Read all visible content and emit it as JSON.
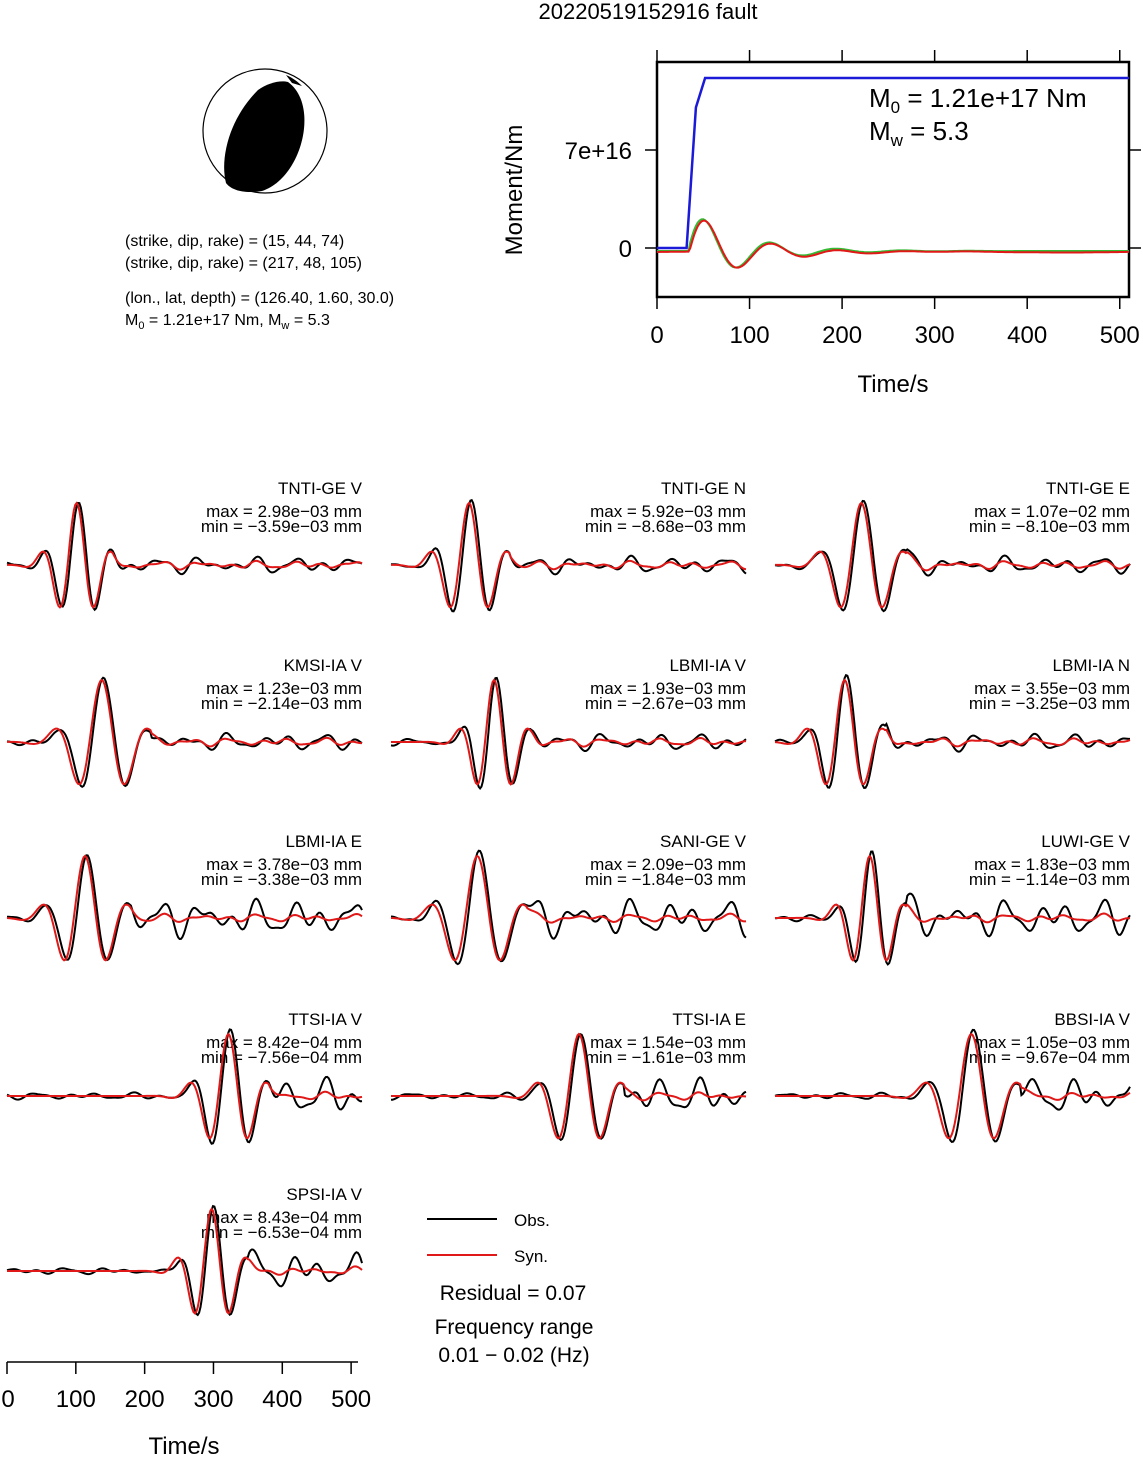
{
  "title": "20220519152916 fault",
  "colors": {
    "obs": "#000000",
    "syn": "#e01818",
    "moment_cum": "#1a1ad8",
    "rate_red": "#e01818",
    "rate_green": "#33bb33",
    "beachball": "#000000"
  },
  "info": {
    "line1": "(strike, dip, rake) = (15, 44, 74)",
    "line2": "(strike, dip, rake) = (217, 48, 105)",
    "line3": "(lon., lat, depth) = (126.40, 1.60, 30.0)",
    "line4_a": "M",
    "line4_b": "0",
    "line4_c": " = 1.21e+17 Nm, M",
    "line4_d": "w",
    "line4_e": " = 5.3"
  },
  "moment_panel": {
    "ylabel": "Moment/Nm",
    "xlabel": "Time/s",
    "annot_m0_a": "M",
    "annot_m0_b": "0",
    "annot_m0_c": " = 1.21e+17 Nm",
    "annot_mw_a": "M",
    "annot_mw_b": "w",
    "annot_mw_c": " = 5.3",
    "yticks": [
      "0",
      "7e+16"
    ],
    "xticks": [
      "0",
      "100",
      "200",
      "300",
      "400",
      "500"
    ]
  },
  "stations": [
    {
      "name": "TNTI-GE V",
      "max": "max = 2.98e−03 mm",
      "min": "min = −3.59e−03 mm"
    },
    {
      "name": "TNTI-GE N",
      "max": "max = 5.92e−03 mm",
      "min": "min = −8.68e−03 mm"
    },
    {
      "name": "TNTI-GE E",
      "max": "max = 1.07e−02 mm",
      "min": "min = −8.10e−03 mm"
    },
    {
      "name": "KMSI-IA V",
      "max": "max = 1.23e−03 mm",
      "min": "min = −2.14e−03 mm"
    },
    {
      "name": "LBMI-IA V",
      "max": "max = 1.93e−03 mm",
      "min": "min = −2.67e−03 mm"
    },
    {
      "name": "LBMI-IA N",
      "max": "max = 3.55e−03 mm",
      "min": "min = −3.25e−03 mm"
    },
    {
      "name": "LBMI-IA E",
      "max": "max = 3.78e−03 mm",
      "min": "min = −3.38e−03 mm"
    },
    {
      "name": "SANI-GE V",
      "max": "max = 2.09e−03 mm",
      "min": "min = −1.84e−03 mm"
    },
    {
      "name": "LUWI-GE V",
      "max": "max = 1.83e−03 mm",
      "min": "min = −1.14e−03 mm"
    },
    {
      "name": "TTSI-IA V",
      "max": "max = 8.42e−04 mm",
      "min": "min = −7.56e−04 mm"
    },
    {
      "name": "TTSI-IA E",
      "max": "max = 1.54e−03 mm",
      "min": "min = −1.61e−03 mm"
    },
    {
      "name": "BBSI-IA V",
      "max": "max = 1.05e−03 mm",
      "min": "min = −9.67e−04 mm"
    },
    {
      "name": "SPSI-IA V",
      "max": "max = 8.43e−04 mm",
      "min": "min = −6.53e−04 mm"
    }
  ],
  "legend": {
    "obs": "Obs.",
    "syn": "Syn.",
    "residual": "Residual = 0.07",
    "freq_label": "Frequency range",
    "freq_value": "0.01 − 0.02 (Hz)"
  },
  "bottom_axis": {
    "xlabel": "Time/s",
    "xticks": [
      "0",
      "100",
      "200",
      "300",
      "400",
      "500"
    ]
  },
  "chart_data": [
    {
      "type": "line",
      "title": "",
      "xlabel": "Time/s",
      "ylabel": "Moment/Nm",
      "xlim": [
        0,
        510
      ],
      "ylim": [
        -3.5e+16,
        1.3e+17
      ],
      "grid": false,
      "series": [
        {
          "x": [
            0,
            32,
            42,
            52,
            510
          ],
          "values": [
            0,
            0,
            1e+17,
            1.21e+17,
            1.21e+17
          ]
        }
      ]
    },
    {
      "type": "line",
      "title": "",
      "xlabel": "Time/s",
      "ylabel": "",
      "xlim": [
        0,
        510
      ],
      "note_units": "normalized amplitude",
      "series": [
        {
          "name": "Obs.",
          "x": [
            0,
            50,
            80,
            100,
            130,
            160,
            190,
            220,
            250,
            300,
            350,
            400,
            450,
            500
          ],
          "values": [
            0,
            0,
            0.3,
            -0.8,
            1.0,
            -0.5,
            0.1,
            0,
            0,
            0,
            0,
            0,
            0,
            0
          ]
        },
        {
          "name": "Syn.",
          "x": [
            0,
            50,
            80,
            100,
            130,
            160,
            190,
            220,
            250,
            300,
            350,
            400,
            450,
            500
          ],
          "values": [
            0,
            0,
            0.3,
            -0.8,
            1.0,
            -0.5,
            0.1,
            0,
            0,
            0,
            0,
            0,
            0,
            0
          ]
        }
      ]
    }
  ]
}
